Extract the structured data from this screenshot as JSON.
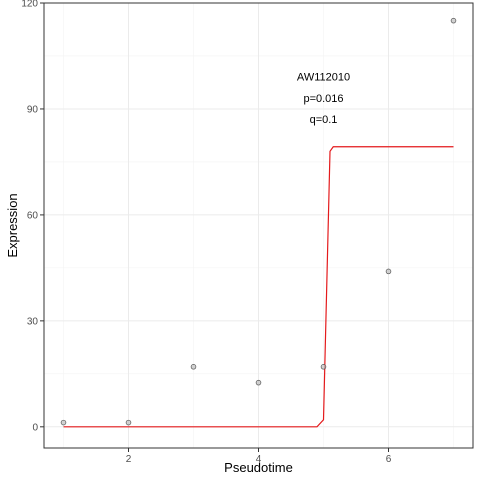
{
  "chart_data": {
    "type": "scatter",
    "title": "",
    "xlabel": "Pseudotime",
    "ylabel": "Expression",
    "xlim": [
      0.7,
      7.3
    ],
    "ylim": [
      -6,
      120
    ],
    "x_ticks": [
      2,
      4,
      6
    ],
    "y_ticks": [
      0,
      30,
      60,
      90,
      120
    ],
    "x_tick_labels": [
      "2",
      "4",
      "6"
    ],
    "y_tick_labels": [
      "0",
      "30",
      "60",
      "90",
      "120"
    ],
    "grid": true,
    "legend": "none",
    "points": [
      {
        "x": 1,
        "y": 1.2
      },
      {
        "x": 2,
        "y": 1.2
      },
      {
        "x": 3,
        "y": 17
      },
      {
        "x": 4,
        "y": 12.5
      },
      {
        "x": 5,
        "y": 17
      },
      {
        "x": 6,
        "y": 44
      },
      {
        "x": 7,
        "y": 115
      }
    ],
    "fit_line": {
      "color": "#e41a1c",
      "x": [
        1,
        4.9,
        5.0,
        5.1,
        5.15,
        7
      ],
      "y": [
        0,
        0,
        2,
        78,
        79.3,
        79.3
      ]
    },
    "annotations": [
      {
        "text": "AW112010",
        "x": 5.0,
        "y": 98
      },
      {
        "text": "p=0.016",
        "x": 5.0,
        "y": 92
      },
      {
        "text": "q=0.1",
        "x": 5.0,
        "y": 86
      }
    ],
    "colors": {
      "point_fill": "#bfbfbf",
      "point_stroke": "#555555",
      "grid": "#ebebeb",
      "panel_border": "#333333"
    }
  }
}
